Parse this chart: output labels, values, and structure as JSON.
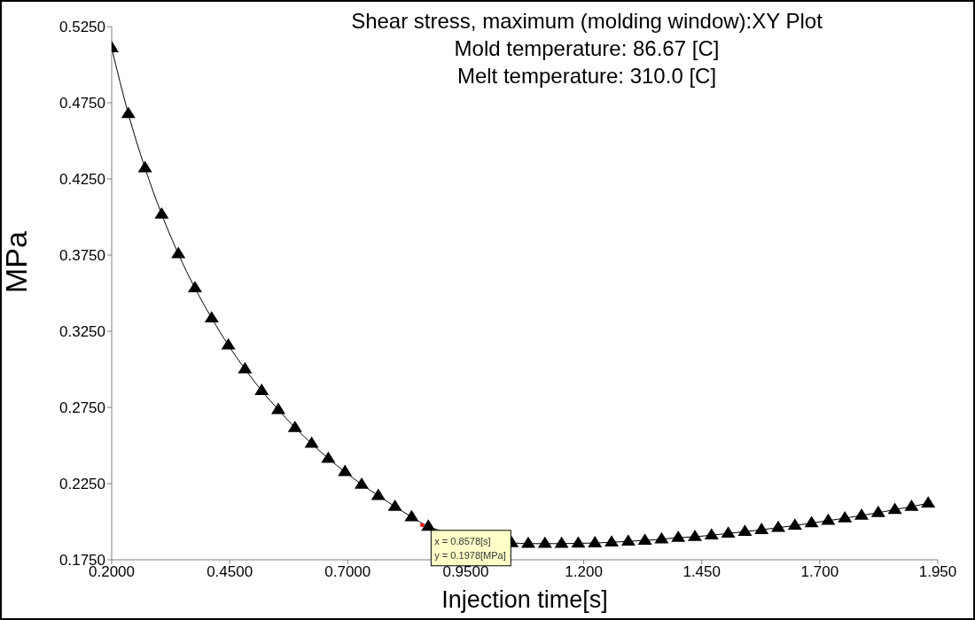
{
  "chart_data": {
    "type": "line",
    "title": "Shear stress, maximum (molding window):XY Plot",
    "subtitle": "Mold temperature: 86.67 [C]\nMelt temperature: 310.0 [C]",
    "xlabel": "Injection time[s]",
    "ylabel": "MPa",
    "x": [
      0.2,
      0.2353,
      0.2706,
      0.3059,
      0.3412,
      0.3765,
      0.4118,
      0.4471,
      0.4824,
      0.5177,
      0.553,
      0.5883,
      0.6236,
      0.6589,
      0.6942,
      0.7295,
      0.7648,
      0.8001,
      0.8354,
      0.8707,
      0.906,
      0.9413,
      0.9766,
      1.0119,
      1.0472,
      1.0825,
      1.1178,
      1.1531,
      1.1884,
      1.2237,
      1.259,
      1.2943,
      1.3296,
      1.3649,
      1.4002,
      1.4355,
      1.4708,
      1.5061,
      1.5414,
      1.5767,
      1.612,
      1.6473,
      1.6826,
      1.7179,
      1.7532,
      1.7885,
      1.8238,
      1.8591,
      1.8944,
      1.9297
    ],
    "series": [
      {
        "color": "#000000",
        "values": [
          0.511,
          0.4677,
          0.4322,
          0.4018,
          0.3758,
          0.3533,
          0.3336,
          0.3159,
          0.3002,
          0.286,
          0.2735,
          0.2617,
          0.2513,
          0.2414,
          0.2328,
          0.2244,
          0.2171,
          0.2099,
          0.2031,
          0.1969,
          null,
          null,
          null,
          null,
          0.1861,
          0.1856,
          0.1856,
          0.1856,
          0.1858,
          0.186,
          0.1865,
          0.1871,
          0.1877,
          0.1885,
          0.1895,
          0.1901,
          0.1911,
          0.1923,
          0.1935,
          0.1947,
          0.1961,
          0.1975,
          0.1991,
          0.2007,
          0.2023,
          0.2041,
          0.2059,
          0.2079,
          0.2099,
          0.2121
        ]
      }
    ],
    "xlim": [
      0.2,
      1.95
    ],
    "xticks": [
      {
        "value": 0.2,
        "label": "0.2000"
      },
      {
        "value": 0.45,
        "label": "0.4500"
      },
      {
        "value": 0.7,
        "label": "0.7000"
      },
      {
        "value": 0.95,
        "label": "0.9500"
      },
      {
        "value": 1.2,
        "label": "1.200"
      },
      {
        "value": 1.45,
        "label": "1.450"
      },
      {
        "value": 1.7,
        "label": "1.700"
      },
      {
        "value": 1.95,
        "label": "1.950"
      }
    ],
    "ylim": [
      0.175,
      0.525
    ],
    "yticks": [
      {
        "value": 0.175,
        "label": "0.1750"
      },
      {
        "value": 0.225,
        "label": "0.2250"
      },
      {
        "value": 0.275,
        "label": "0.2750"
      },
      {
        "value": 0.325,
        "label": "0.3250"
      },
      {
        "value": 0.375,
        "label": "0.3750"
      },
      {
        "value": 0.425,
        "label": "0.4250"
      },
      {
        "value": 0.475,
        "label": "0.4750"
      },
      {
        "value": 0.525,
        "label": "0.5250"
      }
    ],
    "marker": "triangle",
    "annotations": [
      {
        "text": "x = 0.8578[s]\ny = 0.1978[MPa]",
        "x": 0.8578,
        "y": 0.1978
      }
    ]
  }
}
